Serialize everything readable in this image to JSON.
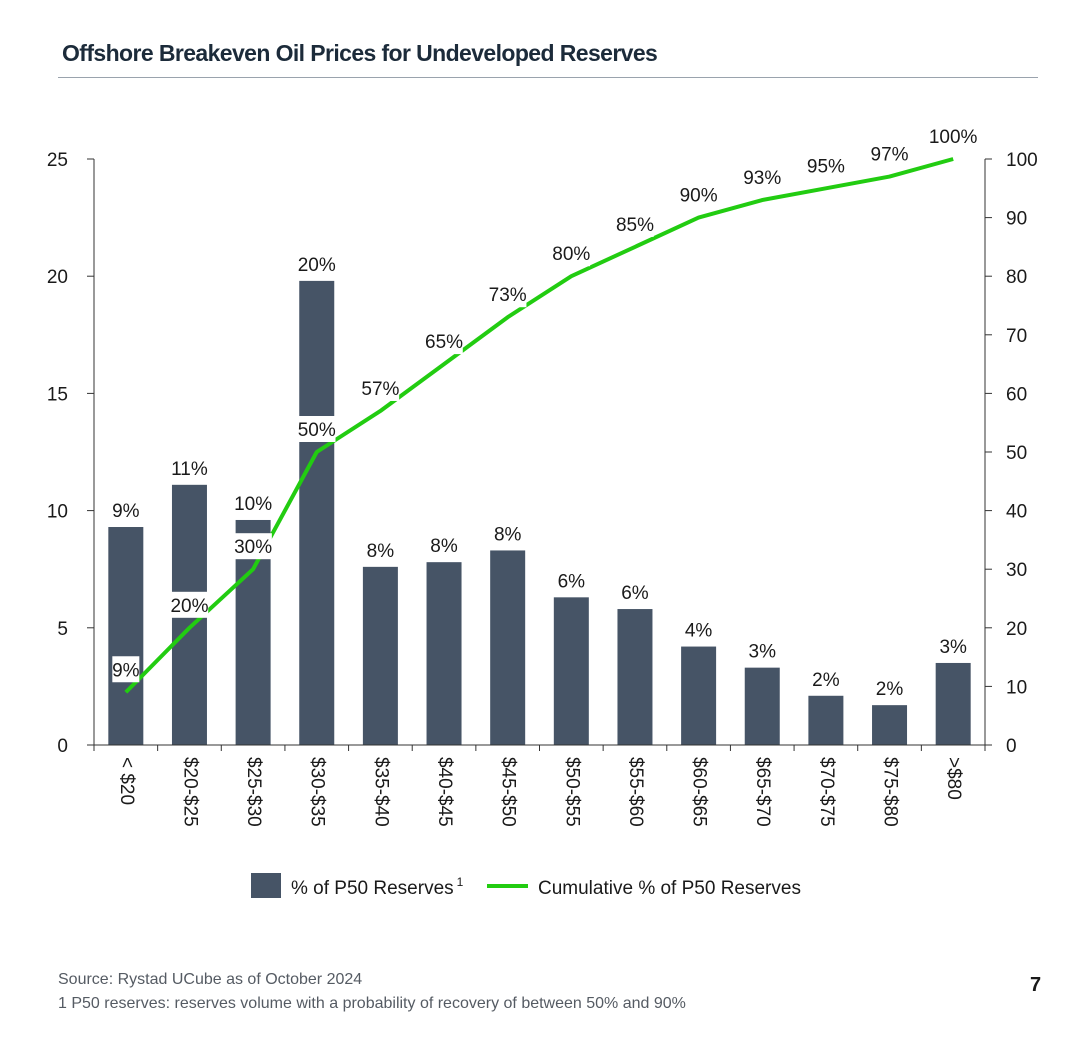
{
  "page": {
    "title": "Offshore Breakeven Oil Prices for Undeveloped Reserves",
    "source": "Source: Rystad UCube as of October 2024",
    "footnote": "1 P50 reserves: reserves volume with a probability of recovery of between 50% and 90%",
    "page_number": "7"
  },
  "chart_data": {
    "type": "bar",
    "categories": [
      "< $20",
      "$20-$25",
      "$25-$30",
      "$30-$35",
      "$35-$40",
      "$40-$45",
      "$45-$50",
      "$50-$55",
      "$55-$60",
      "$60-$65",
      "$65-$70",
      "$70-$75",
      "$75-$80",
      ">$80"
    ],
    "series": [
      {
        "name": "% of P50 Reserves",
        "name_superscript": "1",
        "type": "bar",
        "axis": "left",
        "color": "#465466",
        "values": [
          9.3,
          11.1,
          9.6,
          19.8,
          7.6,
          7.8,
          8.3,
          6.3,
          5.8,
          4.2,
          3.3,
          2.1,
          1.7,
          3.5
        ],
        "labels": [
          "9%",
          "11%",
          "10%",
          "20%",
          "8%",
          "8%",
          "8%",
          "6%",
          "6%",
          "4%",
          "3%",
          "2%",
          "2%",
          "3%"
        ]
      },
      {
        "name": "Cumulative % of P50 Reserves",
        "type": "line",
        "axis": "right",
        "color": "#22cc11",
        "values": [
          9,
          20,
          30,
          50,
          57,
          65,
          73,
          80,
          85,
          90,
          93,
          95,
          97,
          100
        ],
        "labels": [
          "9%",
          "20%",
          "30%",
          "50%",
          "57%",
          "65%",
          "73%",
          "80%",
          "85%",
          "90%",
          "93%",
          "95%",
          "97%",
          "100%"
        ]
      }
    ],
    "y_left": {
      "range": [
        0,
        25
      ],
      "ticks": [
        "0",
        "5",
        "10",
        "15",
        "20",
        "25"
      ]
    },
    "y_right": {
      "range": [
        0,
        100
      ],
      "ticks": [
        "0",
        "10",
        "20",
        "30",
        "40",
        "50",
        "60",
        "70",
        "80",
        "90",
        "100"
      ]
    },
    "grid": false,
    "legend_position": "bottom-center"
  }
}
